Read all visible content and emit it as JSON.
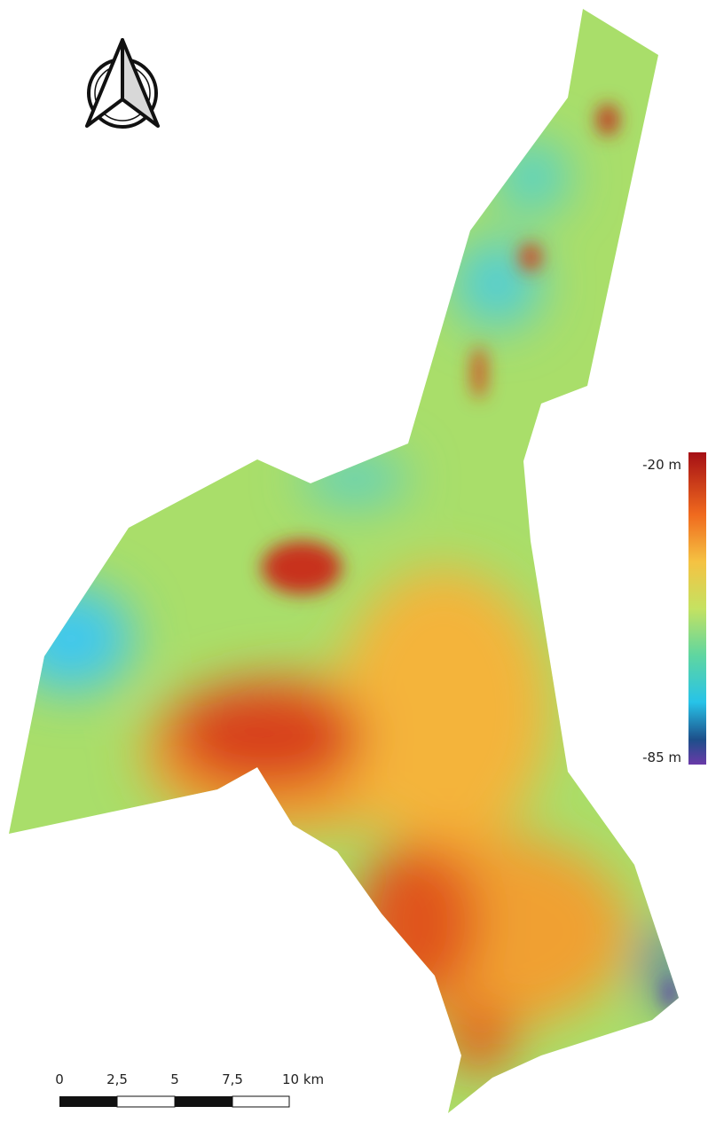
{
  "legend": {
    "max_label": "-20 m",
    "min_label": "-85 m"
  },
  "scale_bar": {
    "labels": [
      "0",
      "2,5",
      "5",
      "7,5",
      "10 km"
    ]
  }
}
